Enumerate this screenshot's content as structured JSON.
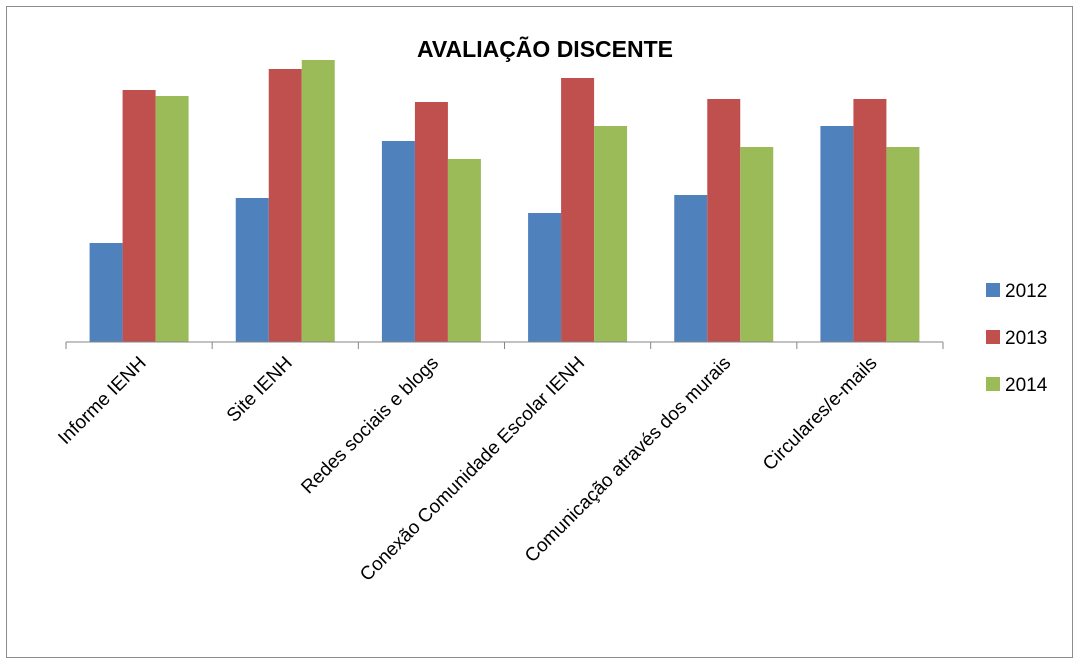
{
  "chart_data": {
    "type": "bar",
    "title": "AVALIAÇÃO DISCENTE",
    "xlabel": "",
    "ylabel": "",
    "categories": [
      "Informe IENH",
      "Site IENH",
      "Redes sociais e blogs",
      "Conexão Comunidade Escolar IENH",
      "Comunicação através dos murais",
      "Circulares/e-mails"
    ],
    "series": [
      {
        "name": "2012",
        "color": "#4F81BD",
        "values": [
          33,
          48,
          67,
          43,
          49,
          72
        ]
      },
      {
        "name": "2013",
        "color": "#C0504D",
        "values": [
          84,
          91,
          80,
          88,
          81,
          81
        ]
      },
      {
        "name": "2014",
        "color": "#9BBB59",
        "values": [
          82,
          94,
          61,
          72,
          65,
          65
        ]
      }
    ],
    "ylim": [
      0,
      100
    ],
    "grid": false,
    "y_axis_visible": false,
    "legend_position": "right"
  }
}
